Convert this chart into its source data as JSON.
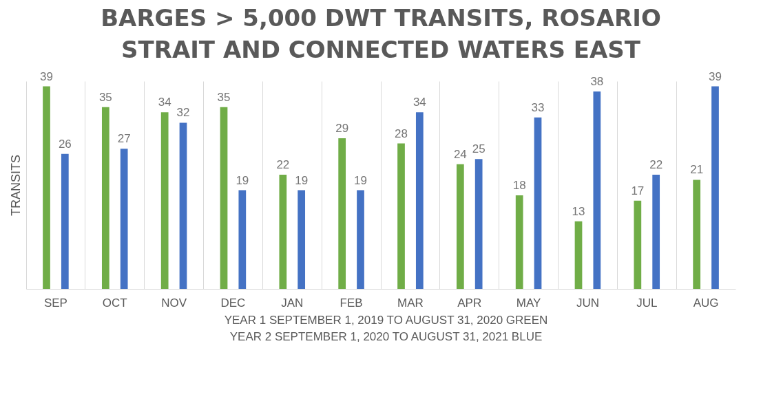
{
  "chart_data": {
    "type": "bar",
    "title": "BARGES > 5,000 DWT TRANSITS, ROSARIO STRAIT AND CONNECTED WATERS EAST",
    "ylabel": "TRANSITS",
    "categories": [
      "SEP",
      "OCT",
      "NOV",
      "DEC",
      "JAN",
      "FEB",
      "MAR",
      "APR",
      "MAY",
      "JUN",
      "JUL",
      "AUG"
    ],
    "series": [
      {
        "color": "#70ad47",
        "values": [
          39,
          35,
          34,
          35,
          22,
          29,
          28,
          24,
          18,
          13,
          17,
          21
        ]
      },
      {
        "color": "#4472c4",
        "values": [
          26,
          27,
          32,
          19,
          19,
          19,
          34,
          25,
          33,
          38,
          22,
          39
        ]
      }
    ],
    "data_labels": true,
    "grid": "x",
    "legend": false,
    "tick_labels": "x",
    "annotations": [
      "YEAR 1 SEPTEMBER 1, 2019 TO AUGUST 31, 2020   GREEN",
      "YEAR 2 SEPTEMBER 1, 2020 TO AUGUST 31, 2021   BLUE"
    ]
  }
}
